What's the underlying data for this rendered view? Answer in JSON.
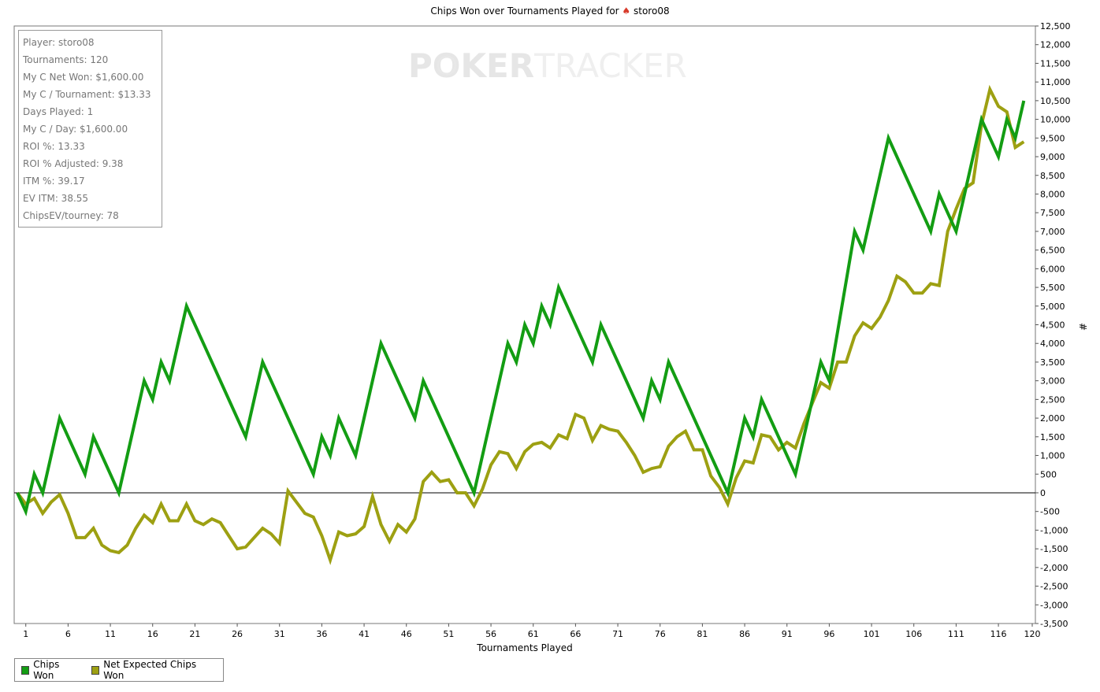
{
  "chart_data": {
    "type": "line",
    "title": "Chips Won over Tournaments Played for",
    "player_name": "storo08",
    "title_icon": "spade-suit-icon",
    "xlabel": "Tournaments Played",
    "ylabel": "#",
    "watermark": {
      "part1": "POKER",
      "part2": "TRACKER",
      "icon": "poker-chip-icon"
    },
    "xlim": [
      0,
      120
    ],
    "ylim": [
      -3500,
      12500
    ],
    "x_ticks": [
      1,
      6,
      11,
      16,
      21,
      26,
      31,
      36,
      41,
      46,
      51,
      56,
      61,
      66,
      71,
      76,
      81,
      86,
      91,
      96,
      101,
      106,
      111,
      116,
      120
    ],
    "y_ticks": [
      12500,
      12000,
      11500,
      11000,
      10500,
      10000,
      9500,
      9000,
      8500,
      8000,
      7500,
      7000,
      6500,
      6000,
      5500,
      5000,
      4500,
      4000,
      3500,
      3000,
      2500,
      2000,
      1500,
      1000,
      500,
      0,
      -500,
      -1000,
      -1500,
      -2000,
      -2500,
      -3000,
      -3500
    ],
    "y_tick_labels": [
      "12,500",
      "12,000",
      "11,500",
      "11,000",
      "10,500",
      "10,000",
      "9,500",
      "9,000",
      "8,500",
      "8,000",
      "7,500",
      "7,000",
      "6,500",
      "6,000",
      "5,500",
      "5,000",
      "4,500",
      "4,000",
      "3,500",
      "3,000",
      "2,500",
      "2,000",
      "1,500",
      "1,000",
      "500",
      "0",
      "-500",
      "-1,000",
      "-1,500",
      "-2,000",
      "-2,500",
      "-3,000",
      "-3,500"
    ],
    "legend_position": "bottom-left",
    "series": [
      {
        "name": "Chips Won",
        "color": "#139d13",
        "points": [
          [
            0,
            0
          ],
          [
            1,
            -500
          ],
          [
            2,
            500
          ],
          [
            3,
            0
          ],
          [
            5,
            2000
          ],
          [
            8,
            500
          ],
          [
            9,
            1500
          ],
          [
            12,
            0
          ],
          [
            15,
            3000
          ],
          [
            16,
            2500
          ],
          [
            17,
            3500
          ],
          [
            18,
            3000
          ],
          [
            20,
            5000
          ],
          [
            27,
            1500
          ],
          [
            29,
            3500
          ],
          [
            35,
            500
          ],
          [
            36,
            1500
          ],
          [
            37,
            1000
          ],
          [
            38,
            2000
          ],
          [
            40,
            1000
          ],
          [
            43,
            4000
          ],
          [
            47,
            2000
          ],
          [
            48,
            3000
          ],
          [
            54,
            0
          ],
          [
            58,
            4000
          ],
          [
            59,
            3500
          ],
          [
            60,
            4500
          ],
          [
            61,
            4000
          ],
          [
            62,
            5000
          ],
          [
            63,
            4500
          ],
          [
            64,
            5500
          ],
          [
            68,
            3500
          ],
          [
            69,
            4500
          ],
          [
            74,
            2000
          ],
          [
            75,
            3000
          ],
          [
            76,
            2500
          ],
          [
            77,
            3500
          ],
          [
            84,
            0
          ],
          [
            86,
            2000
          ],
          [
            87,
            1500
          ],
          [
            88,
            2500
          ],
          [
            92,
            500
          ],
          [
            95,
            3500
          ],
          [
            96,
            3000
          ],
          [
            99,
            7000
          ],
          [
            100,
            6500
          ],
          [
            103,
            9500
          ],
          [
            108,
            7000
          ],
          [
            109,
            8000
          ],
          [
            111,
            7000
          ],
          [
            114,
            10000
          ],
          [
            116,
            9000
          ],
          [
            117,
            10000
          ],
          [
            118,
            9500
          ],
          [
            119,
            10500
          ]
        ]
      },
      {
        "name": "Net Expected Chips Won",
        "color": "#9da012",
        "points": [
          [
            0,
            0
          ],
          [
            1,
            -300
          ],
          [
            2,
            -150
          ],
          [
            3,
            -550
          ],
          [
            4,
            -250
          ],
          [
            5,
            -50
          ],
          [
            6,
            -550
          ],
          [
            7,
            -1200
          ],
          [
            8,
            -1200
          ],
          [
            9,
            -950
          ],
          [
            10,
            -1400
          ],
          [
            11,
            -1550
          ],
          [
            12,
            -1600
          ],
          [
            13,
            -1400
          ],
          [
            14,
            -950
          ],
          [
            15,
            -600
          ],
          [
            16,
            -800
          ],
          [
            17,
            -300
          ],
          [
            18,
            -750
          ],
          [
            19,
            -750
          ],
          [
            20,
            -300
          ],
          [
            21,
            -750
          ],
          [
            22,
            -850
          ],
          [
            23,
            -700
          ],
          [
            24,
            -800
          ],
          [
            25,
            -1150
          ],
          [
            26,
            -1500
          ],
          [
            27,
            -1450
          ],
          [
            28,
            -1200
          ],
          [
            29,
            -950
          ],
          [
            30,
            -1100
          ],
          [
            31,
            -1350
          ],
          [
            32,
            50
          ],
          [
            33,
            -250
          ],
          [
            34,
            -550
          ],
          [
            35,
            -650
          ],
          [
            36,
            -1150
          ],
          [
            37,
            -1800
          ],
          [
            38,
            -1050
          ],
          [
            39,
            -1150
          ],
          [
            40,
            -1100
          ],
          [
            41,
            -900
          ],
          [
            42,
            -100
          ],
          [
            43,
            -850
          ],
          [
            44,
            -1300
          ],
          [
            45,
            -850
          ],
          [
            46,
            -1050
          ],
          [
            47,
            -700
          ],
          [
            48,
            300
          ],
          [
            49,
            550
          ],
          [
            50,
            300
          ],
          [
            51,
            350
          ],
          [
            52,
            0
          ],
          [
            53,
            0
          ],
          [
            54,
            -350
          ],
          [
            55,
            100
          ],
          [
            56,
            750
          ],
          [
            57,
            1100
          ],
          [
            58,
            1050
          ],
          [
            59,
            650
          ],
          [
            60,
            1100
          ],
          [
            61,
            1300
          ],
          [
            62,
            1350
          ],
          [
            63,
            1200
          ],
          [
            64,
            1550
          ],
          [
            65,
            1450
          ],
          [
            66,
            2100
          ],
          [
            67,
            2000
          ],
          [
            68,
            1400
          ],
          [
            69,
            1800
          ],
          [
            70,
            1700
          ],
          [
            71,
            1650
          ],
          [
            72,
            1350
          ],
          [
            73,
            1000
          ],
          [
            74,
            550
          ],
          [
            75,
            650
          ],
          [
            76,
            700
          ],
          [
            77,
            1250
          ],
          [
            78,
            1500
          ],
          [
            79,
            1650
          ],
          [
            80,
            1150
          ],
          [
            81,
            1150
          ],
          [
            82,
            450
          ],
          [
            83,
            150
          ],
          [
            84,
            -300
          ],
          [
            85,
            400
          ],
          [
            86,
            850
          ],
          [
            87,
            800
          ],
          [
            88,
            1550
          ],
          [
            89,
            1500
          ],
          [
            90,
            1150
          ],
          [
            91,
            1350
          ],
          [
            92,
            1200
          ],
          [
            93,
            1850
          ],
          [
            94,
            2400
          ],
          [
            95,
            2950
          ],
          [
            96,
            2800
          ],
          [
            97,
            3500
          ],
          [
            98,
            3500
          ],
          [
            99,
            4200
          ],
          [
            100,
            4550
          ],
          [
            101,
            4400
          ],
          [
            102,
            4700
          ],
          [
            103,
            5150
          ],
          [
            104,
            5800
          ],
          [
            105,
            5650
          ],
          [
            106,
            5350
          ],
          [
            107,
            5350
          ],
          [
            108,
            5600
          ],
          [
            109,
            5550
          ],
          [
            110,
            7000
          ],
          [
            111,
            7600
          ],
          [
            112,
            8150
          ],
          [
            113,
            8300
          ],
          [
            114,
            9850
          ],
          [
            115,
            10800
          ],
          [
            116,
            10350
          ],
          [
            117,
            10200
          ],
          [
            118,
            9250
          ],
          [
            119,
            9400
          ]
        ]
      }
    ]
  },
  "stats_box": [
    "Player: storo08",
    "Tournaments: 120",
    "My C Net Won: $1,600.00",
    "My C / Tournament: $13.33",
    "Days Played: 1",
    "My C / Day: $1,600.00",
    "ROI %: 13.33",
    "ROI % Adjusted: 9.38",
    "ITM %: 39.17",
    "EV ITM: 38.55",
    "ChipsEV/tourney: 78"
  ],
  "legend": [
    {
      "label": "Chips Won",
      "color": "#139d13"
    },
    {
      "label": "Net Expected Chips Won",
      "color": "#9da012"
    }
  ]
}
